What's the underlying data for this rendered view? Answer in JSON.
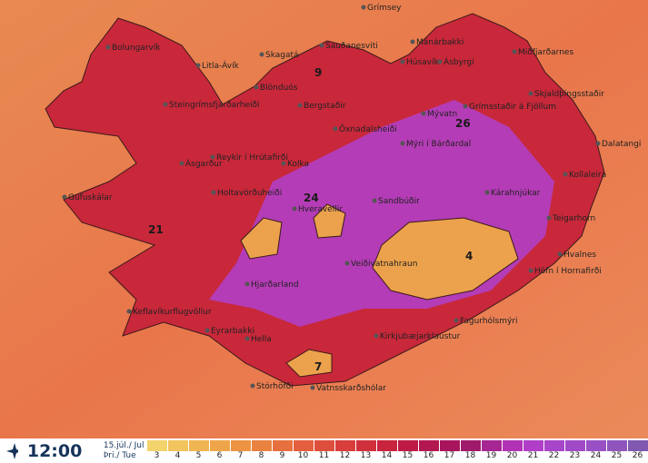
{
  "places": [
    "Grímsey",
    "Sauðanesviti",
    "Skagatá",
    "Mánárbakki",
    "Húsavík",
    "Ásbyrgi",
    "Miðfjarðarnes",
    "Bolungarvík",
    "Litla-Ávík",
    "Steingrímsfjarðarheiði",
    "Blönduós",
    "Bergstaðir",
    "Öxnadalsheiði",
    "Mývatn",
    "Grímsstaðir á Fjöllum",
    "Skjaldþingsstaðir",
    "Dalatangi",
    "Kollaleira",
    "Mýri í Bárðardal",
    "Ásgarður",
    "Reykir í Hrútafirði",
    "Kolka",
    "Holtavörðuheiði",
    "Gufuskálar",
    "Hveravellir",
    "Sandbúðir",
    "Kárahnjúkar",
    "Teigarhorn",
    "Hvalnes",
    "Höfn í Hornafirði",
    "Veiðivatnahraun",
    "Hjarðarland",
    "Keflavíkurflugvöllur",
    "Eyrarbakki",
    "Hella",
    "Kirkjubæjarklaustur",
    "Fagurhólsmýri",
    "Vatnsskarðshólar",
    "Stórhöfði"
  ],
  "temperatures": [
    9,
    26,
    24,
    21,
    4,
    7
  ],
  "time": "12:00",
  "date": "15.júl./ Jul",
  "weekday": "Þri./ Tue",
  "legend": {
    "values": [
      3,
      4,
      5,
      6,
      7,
      8,
      9,
      10,
      11,
      12,
      13,
      14,
      15,
      16,
      17,
      18,
      19,
      20,
      21,
      22,
      23,
      24,
      25,
      26
    ],
    "colors": [
      "#f3d36b",
      "#f2c45e",
      "#f0b553",
      "#eea54a",
      "#ec9444",
      "#e98240",
      "#e6703e",
      "#e35f3d",
      "#de4e3c",
      "#d83e3b",
      "#d0303b",
      "#c8243d",
      "#bd1b45",
      "#b3174f",
      "#a9155c",
      "#a01a6b",
      "#a62693",
      "#b232b5",
      "#b03ec7",
      "#a845c9",
      "#a04ac8",
      "#9850c4",
      "#8f55bd",
      "#8058b0"
    ]
  }
}
